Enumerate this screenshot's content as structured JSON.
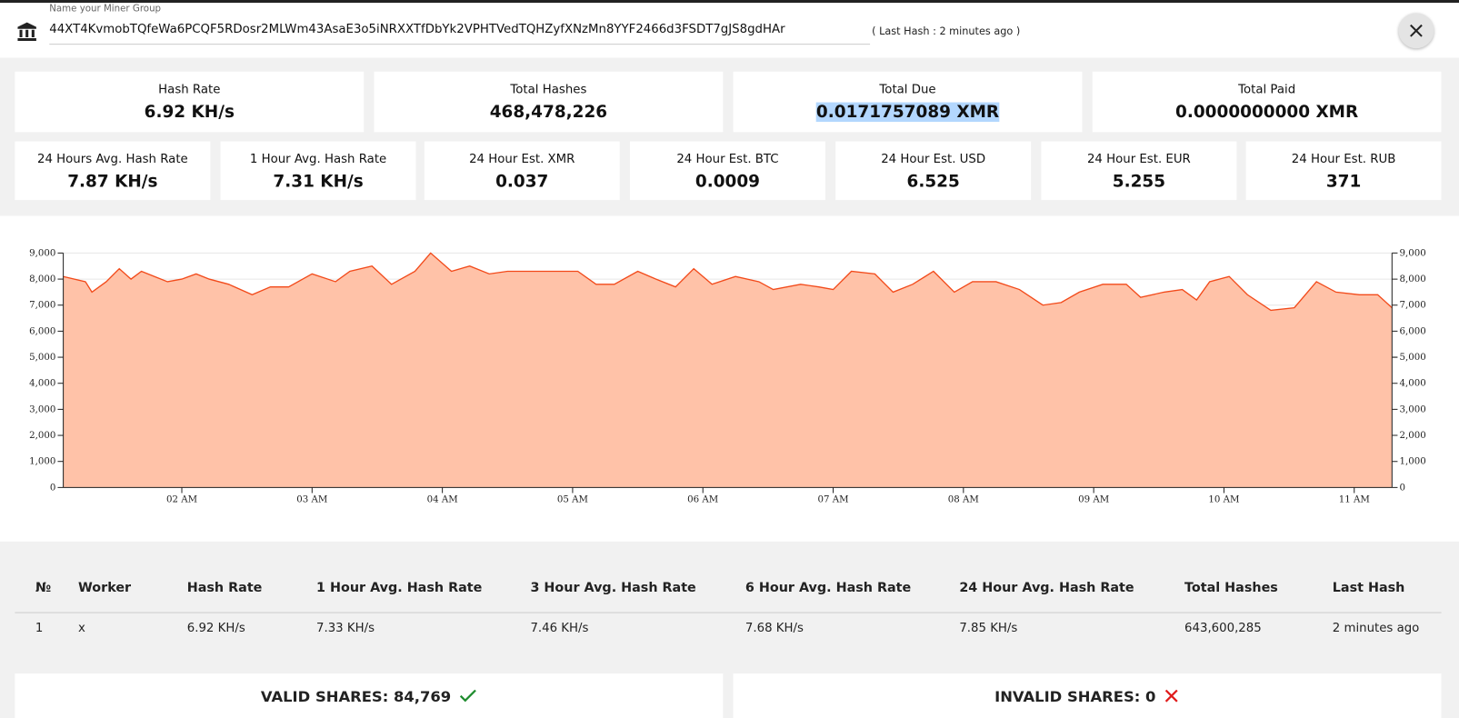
{
  "header": {
    "input_label": "Name your Miner Group",
    "address": "44XT4KvmobTQfeWa6PCQF5RDosr2MLWm43AsaE3o5iNRXXTfDbYk2VPHTVedTQHZyfXNzMn8YYF2466d3FSDT7gJS8gdHAr",
    "last_hash": "( Last Hash : 2 minutes ago )"
  },
  "stats": [
    {
      "label": "Hash Rate",
      "value": "6.92 KH/s"
    },
    {
      "label": "Total Hashes",
      "value": "468,478,226"
    },
    {
      "label": "Total Due",
      "value": "0.0171757089 XMR"
    },
    {
      "label": "Total Paid",
      "value": "0.0000000000 XMR"
    }
  ],
  "estimates": [
    {
      "label": "24 Hours Avg. Hash Rate",
      "value": "7.87 KH/s"
    },
    {
      "label": "1 Hour Avg. Hash Rate",
      "value": "7.31 KH/s"
    },
    {
      "label": "24 Hour Est. XMR",
      "value": "0.037"
    },
    {
      "label": "24 Hour Est. BTC",
      "value": "0.0009"
    },
    {
      "label": "24 Hour Est. USD",
      "value": "6.525"
    },
    {
      "label": "24 Hour Est. EUR",
      "value": "5.255"
    },
    {
      "label": "24 Hour Est. RUB",
      "value": "371"
    }
  ],
  "chart_data": {
    "type": "area",
    "x": [
      1.09,
      1.26,
      1.31,
      1.42,
      1.52,
      1.61,
      1.69,
      1.79,
      1.89,
      2.0,
      2.11,
      2.21,
      2.36,
      2.54,
      2.68,
      2.82,
      3.0,
      3.18,
      3.29,
      3.46,
      3.61,
      3.79,
      3.91,
      4.07,
      4.21,
      4.36,
      4.5,
      4.64,
      4.82,
      5.04,
      5.18,
      5.32,
      5.5,
      5.64,
      5.79,
      5.93,
      6.07,
      6.25,
      6.43,
      6.54,
      6.75,
      6.89,
      7.0,
      7.14,
      7.32,
      7.46,
      7.61,
      7.77,
      7.93,
      8.07,
      8.25,
      8.43,
      8.61,
      8.75,
      8.89,
      9.07,
      9.25,
      9.36,
      9.54,
      9.68,
      9.79,
      9.89,
      10.04,
      10.18,
      10.36,
      10.54,
      10.71,
      10.86,
      11.04,
      11.18,
      11.29
    ],
    "series": [
      {
        "color": "#f24a1a",
        "area_color": "#ffc2a8",
        "values": [
          8100,
          7900,
          7500,
          7900,
          8400,
          8000,
          8300,
          8100,
          7900,
          8000,
          8200,
          8000,
          7800,
          7400,
          7700,
          7700,
          8200,
          7900,
          8300,
          8500,
          7800,
          8300,
          9000,
          8300,
          8500,
          8200,
          8300,
          8300,
          8300,
          8300,
          7800,
          7800,
          8300,
          8000,
          7700,
          8400,
          7800,
          8100,
          7900,
          7600,
          7800,
          7700,
          7600,
          8300,
          8200,
          7500,
          7800,
          8300,
          7500,
          7900,
          7900,
          7600,
          7000,
          7100,
          7500,
          7800,
          7800,
          7300,
          7500,
          7600,
          7200,
          7900,
          8100,
          7400,
          6800,
          6900,
          7900,
          7500,
          7400,
          7400,
          6900
        ]
      }
    ],
    "xlim": [
      1.09,
      11.29
    ],
    "xticks": [
      {
        "value": 2,
        "label": "02 AM"
      },
      {
        "value": 3,
        "label": "03 AM"
      },
      {
        "value": 4,
        "label": "04 AM"
      },
      {
        "value": 5,
        "label": "05 AM"
      },
      {
        "value": 6,
        "label": "06 AM"
      },
      {
        "value": 7,
        "label": "07 AM"
      },
      {
        "value": 8,
        "label": "08 AM"
      },
      {
        "value": 9,
        "label": "09 AM"
      },
      {
        "value": 10,
        "label": "10 AM"
      },
      {
        "value": 11,
        "label": "11 AM"
      }
    ],
    "ylim": [
      0,
      9000
    ],
    "yticks": [
      0,
      {
        "value": 1000,
        "label": "1,000"
      },
      {
        "value": 2000,
        "label": "2,000"
      },
      {
        "value": 3000,
        "label": "3,000"
      },
      {
        "value": 4000,
        "label": "4,000"
      },
      {
        "value": 5000,
        "label": "5,000"
      },
      {
        "value": 6000,
        "label": "6,000"
      },
      {
        "value": 7000,
        "label": "7,000"
      },
      {
        "value": 8000,
        "label": "8,000"
      },
      {
        "value": 9000,
        "label": "9,000"
      }
    ],
    "y2lim": [
      0,
      9000
    ],
    "y2ticks": [
      0,
      {
        "value": 1000,
        "label": "1,000"
      },
      {
        "value": 2000,
        "label": "2,000"
      },
      {
        "value": 3000,
        "label": "3,000"
      },
      {
        "value": 4000,
        "label": "4,000"
      },
      {
        "value": 5000,
        "label": "5,000"
      },
      {
        "value": 6000,
        "label": "6,000"
      },
      {
        "value": 7000,
        "label": "7,000"
      },
      {
        "value": 8000,
        "label": "8,000"
      },
      {
        "value": 9000,
        "label": "9,000"
      }
    ],
    "grid": true
  },
  "table": {
    "headers": [
      "№",
      "Worker",
      "Hash Rate",
      "1 Hour Avg. Hash Rate",
      "3 Hour Avg. Hash Rate",
      "6 Hour Avg. Hash Rate",
      "24 Hour Avg. Hash Rate",
      "Total Hashes",
      "Last Hash"
    ],
    "rows": [
      [
        "1",
        "x",
        "6.92 KH/s",
        "7.33 KH/s",
        "7.46 KH/s",
        "7.68 KH/s",
        "7.85 KH/s",
        "643,600,285",
        "2 minutes ago"
      ]
    ]
  },
  "shares": {
    "valid": "VALID SHARES: 84,769",
    "invalid": "INVALID SHARES: 0"
  }
}
